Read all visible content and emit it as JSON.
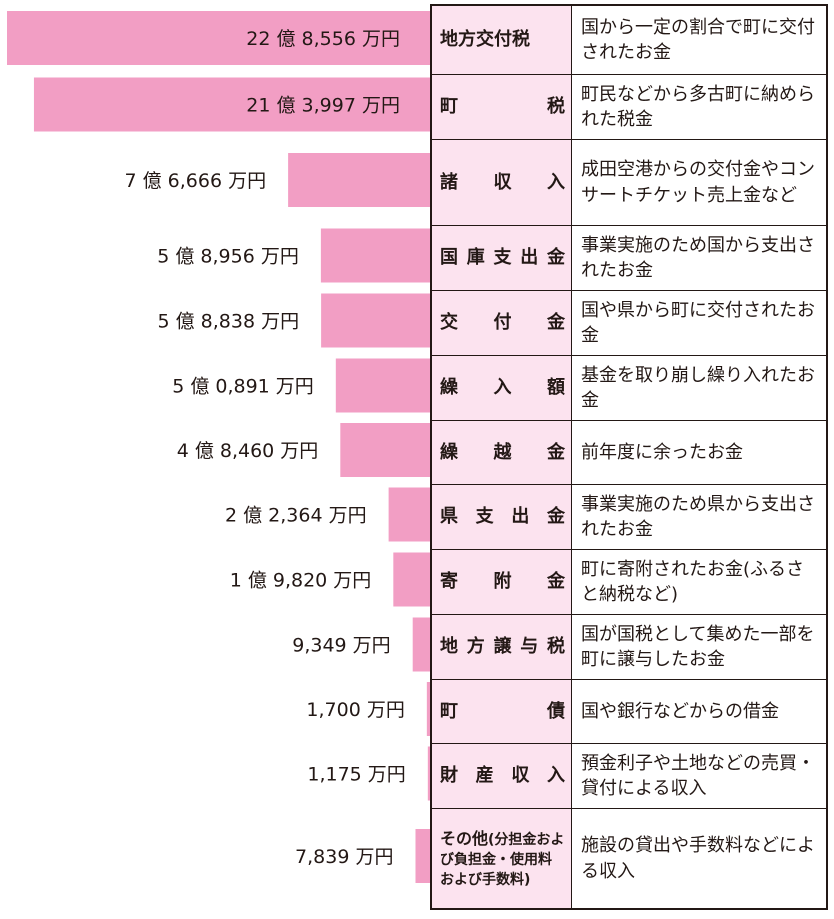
{
  "chart_data": {
    "type": "bar",
    "orientation": "horizontal",
    "unit": "万円",
    "categories": [
      "地方交付税",
      "町税",
      "諸収入",
      "国庫支出金",
      "交付金",
      "繰入額",
      "繰越金",
      "県支出金",
      "寄附金",
      "地方譲与税",
      "町債",
      "財産収入",
      "その他(分担金および負担金・使用料および手数料)"
    ],
    "values": [
      228556,
      213997,
      76666,
      58956,
      58838,
      50891,
      48460,
      22364,
      19820,
      9349,
      1700,
      1175,
      7839
    ],
    "value_labels": [
      "22 億 8,556 万円",
      "21 億 3,997 万円",
      "7 億 6,666 万円",
      "5 億 8,956 万円",
      "5 億 8,838 万円",
      "5 億 0,891 万円",
      "4 億 8,460 万円",
      "2 億 2,364 万円",
      "1 億 9,820 万円",
      "9,349 万円",
      "1,700 万円",
      "1,175 万円",
      "7,839 万円"
    ],
    "descriptions": [
      "国から一定の割合で町に交付されたお金",
      "町民などから多古町に納められた税金",
      "成田空港からの交付金やコンサートチケット売上金など",
      "事業実施のため国から支出されたお金",
      "国や県から町に交付されたお金",
      "基金を取り崩し繰り入れたお金",
      "前年度に余ったお金",
      "事業実施のため県から支出されたお金",
      "町に寄附されたお金(ふるさと納税など)",
      "国が国税として集めた一部を町に譲与したお金",
      "国や銀行などからの借金",
      "預金利子や土地などの売買・貸付による収入",
      "施設の貸出や手数料などによる収入"
    ],
    "colors": {
      "bar": "#f29ec4",
      "label_bg": "#fce3ef"
    }
  },
  "table": {
    "rows": [
      {
        "label": "地方交付税",
        "desc": "国から一定の割合で町に交付されたお金"
      },
      {
        "label": "町税",
        "desc": "町民などから多古町に納められた税金"
      },
      {
        "label": "諸収入",
        "desc": "成田空港からの交付金やコンサートチケット売上金など"
      },
      {
        "label": "国庫支出金",
        "desc": "事業実施のため国から支出されたお金"
      },
      {
        "label": "交付金",
        "desc": "国や県から町に交付されたお金"
      },
      {
        "label": "繰入額",
        "desc": "基金を取り崩し繰り入れたお金"
      },
      {
        "label": "繰越金",
        "desc": "前年度に余ったお金"
      },
      {
        "label": "県支出金",
        "desc": "事業実施のため県から支出されたお金"
      },
      {
        "label": "寄附金",
        "desc": "町に寄附されたお金(ふるさと納税など)"
      },
      {
        "label": "地方譲与税",
        "desc": "国が国税として集めた一部を町に譲与したお金"
      },
      {
        "label": "町債",
        "desc": "国や銀行などからの借金"
      },
      {
        "label": "財産収入",
        "desc": "預金利子や土地などの売買・貸付による収入"
      },
      {
        "label_main": "その他",
        "label_sub": "(分担金および負担金・使用料および手数料)",
        "desc": "施設の貸出や手数料などによる収入"
      }
    ]
  }
}
